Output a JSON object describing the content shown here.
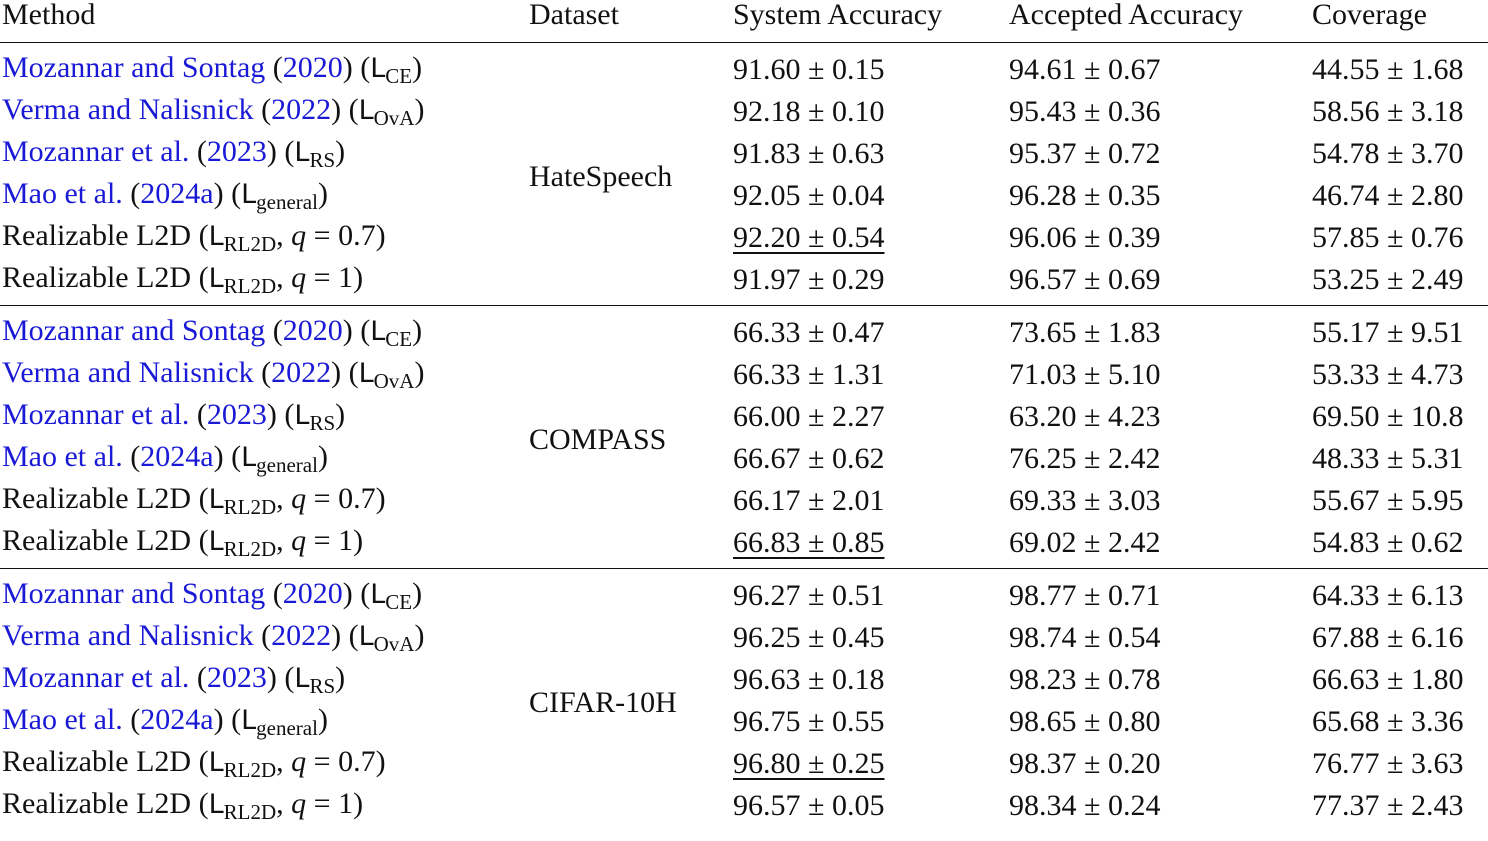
{
  "headers": {
    "method": "Method",
    "dataset": "Dataset",
    "system_accuracy": "System Accuracy",
    "accepted_accuracy": "Accepted Accuracy",
    "coverage": "Coverage"
  },
  "colors": {
    "citation": "#1a1ad6",
    "text": "#111111",
    "rule": "#111111"
  },
  "groups": [
    {
      "dataset": "HateSpeech",
      "rows": [
        {
          "cite": "Mozannar and Sontag",
          "year": "2020",
          "loss_sub": "CE",
          "q": "",
          "sys": "91.60 ± 0.15",
          "acc": "94.61 ± 0.67",
          "cov": "44.55 ± 1.68",
          "best": false
        },
        {
          "cite": "Verma and Nalisnick",
          "year": "2022",
          "loss_sub": "OvA",
          "q": "",
          "sys": "92.18 ± 0.10",
          "acc": "95.43 ± 0.36",
          "cov": "58.56 ± 3.18",
          "best": false
        },
        {
          "cite": "Mozannar et al.",
          "year": "2023",
          "loss_sub": "RS",
          "q": "",
          "sys": "91.83 ± 0.63",
          "acc": "95.37 ± 0.72",
          "cov": "54.78 ± 3.70",
          "best": false
        },
        {
          "cite": "Mao et al.",
          "year": "2024a",
          "loss_sub": "general",
          "q": "",
          "sys": "92.05 ± 0.04",
          "acc": "96.28 ± 0.35",
          "cov": "46.74 ± 2.80",
          "best": false
        },
        {
          "name": "Realizable L2D",
          "loss_sub": "RL2D",
          "q": "0.7",
          "sys": "92.20 ± 0.54",
          "acc": "96.06 ± 0.39",
          "cov": "57.85 ± 0.76",
          "best": true
        },
        {
          "name": "Realizable L2D",
          "loss_sub": "RL2D",
          "q": "1",
          "sys": "91.97 ± 0.29",
          "acc": "96.57 ± 0.69",
          "cov": "53.25 ± 2.49",
          "best": false
        }
      ]
    },
    {
      "dataset": "COMPASS",
      "rows": [
        {
          "cite": "Mozannar and Sontag",
          "year": "2020",
          "loss_sub": "CE",
          "q": "",
          "sys": "66.33 ± 0.47",
          "acc": "73.65 ± 1.83",
          "cov": "55.17 ± 9.51",
          "best": false
        },
        {
          "cite": "Verma and Nalisnick",
          "year": "2022",
          "loss_sub": "OvA",
          "q": "",
          "sys": "66.33 ± 1.31",
          "acc": "71.03 ± 5.10",
          "cov": "53.33 ± 4.73",
          "best": false
        },
        {
          "cite": "Mozannar et al.",
          "year": "2023",
          "loss_sub": "RS",
          "q": "",
          "sys": "66.00 ± 2.27",
          "acc": "63.20 ± 4.23",
          "cov": "69.50 ± 10.8",
          "best": false
        },
        {
          "cite": "Mao et al.",
          "year": "2024a",
          "loss_sub": "general",
          "q": "",
          "sys": "66.67 ± 0.62",
          "acc": "76.25 ± 2.42",
          "cov": "48.33 ± 5.31",
          "best": false
        },
        {
          "name": "Realizable L2D",
          "loss_sub": "RL2D",
          "q": "0.7",
          "sys": "66.17 ± 2.01",
          "acc": "69.33 ± 3.03",
          "cov": "55.67 ± 5.95",
          "best": false
        },
        {
          "name": "Realizable L2D",
          "loss_sub": "RL2D",
          "q": "1",
          "sys": "66.83 ± 0.85",
          "acc": "69.02 ± 2.42",
          "cov": "54.83 ± 0.62",
          "best": true
        }
      ]
    },
    {
      "dataset": "CIFAR-10H",
      "rows": [
        {
          "cite": "Mozannar and Sontag",
          "year": "2020",
          "loss_sub": "CE",
          "q": "",
          "sys": "96.27 ± 0.51",
          "acc": "98.77 ± 0.71",
          "cov": "64.33 ± 6.13",
          "best": false
        },
        {
          "cite": "Verma and Nalisnick",
          "year": "2022",
          "loss_sub": "OvA",
          "q": "",
          "sys": "96.25 ± 0.45",
          "acc": "98.74 ± 0.54",
          "cov": "67.88 ± 6.16",
          "best": false
        },
        {
          "cite": "Mozannar et al.",
          "year": "2023",
          "loss_sub": "RS",
          "q": "",
          "sys": "96.63 ± 0.18",
          "acc": "98.23 ± 0.78",
          "cov": "66.63 ± 1.80",
          "best": false
        },
        {
          "cite": "Mao et al.",
          "year": "2024a",
          "loss_sub": "general",
          "q": "",
          "sys": "96.75 ± 0.55",
          "acc": "98.65 ± 0.80",
          "cov": "65.68 ± 3.36",
          "best": false
        },
        {
          "name": "Realizable L2D",
          "loss_sub": "RL2D",
          "q": "0.7",
          "sys": "96.80 ± 0.25",
          "acc": "98.37 ± 0.20",
          "cov": "76.77 ± 3.63",
          "best": true
        },
        {
          "name": "Realizable L2D",
          "loss_sub": "RL2D",
          "q": "1",
          "sys": "96.57 ± 0.05",
          "acc": "98.34 ± 0.24",
          "cov": "77.37 ± 2.43",
          "best": false
        }
      ]
    }
  ]
}
